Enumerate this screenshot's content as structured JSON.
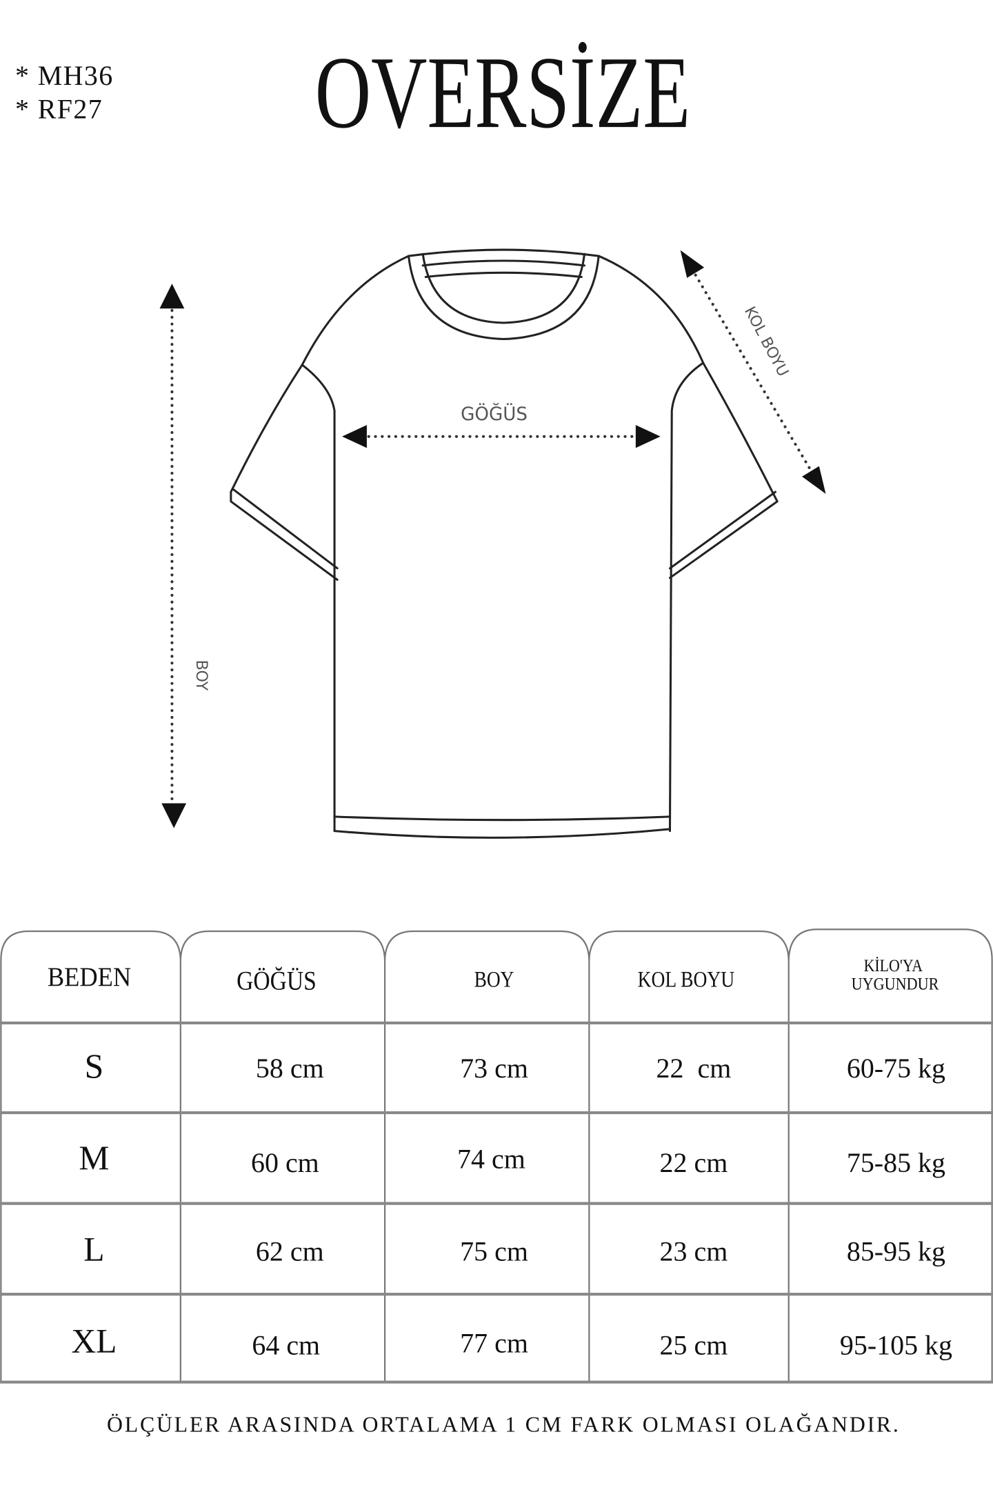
{
  "codes": [
    "*  MH36",
    "*  RF27"
  ],
  "title": "OVERSİZE",
  "diagram": {
    "chest_label": "GÖĞÜS",
    "length_label": "BOY",
    "sleeve_label": "KOL BOYU"
  },
  "table": {
    "headers": [
      "BEDEN",
      "GÖĞÜS",
      "BOY",
      "KOL BOYU",
      "KİLO'YA",
      "UYGUNDUR"
    ],
    "rows": [
      [
        "S",
        "58 cm",
        "73 cm",
        "22  cm",
        "60-75 kg"
      ],
      [
        "M",
        "60 cm",
        "74 cm",
        "22 cm",
        "75-85 kg"
      ],
      [
        "L",
        "62 cm",
        "75 cm",
        "23 cm",
        "85-95 kg"
      ],
      [
        "XL",
        "64 cm",
        "77 cm",
        "25 cm",
        "95-105 kg"
      ]
    ]
  },
  "footer": "ÖLÇÜLER ARASINDA ORTALAMA 1 CM FARK OLMASI OLAĞANDIR."
}
